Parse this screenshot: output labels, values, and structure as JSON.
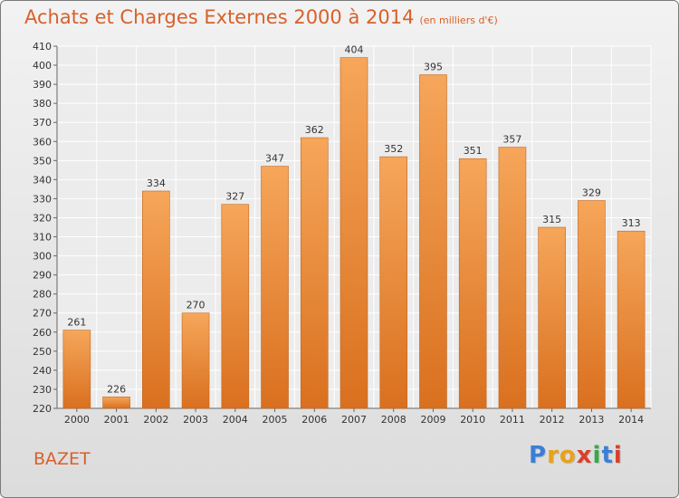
{
  "page": {
    "title": "Achats et Charges Externes 2000 à 2014",
    "unit": "(en milliers d'€)",
    "place": "BAZET",
    "logo": "Proxiti"
  },
  "colors": {
    "bar_top": "#f6a65a",
    "bar_bottom": "#d9701f",
    "bar_edge": "#c4661d",
    "title": "#d8602a",
    "logo": [
      "#3a7fd5",
      "#e8a21b",
      "#e8a21b",
      "#d8402a",
      "#3aa84a",
      "#3a7fd5",
      "#d8402a"
    ]
  },
  "chart_data": {
    "type": "bar",
    "title": "Achats et Charges Externes 2000 à 2014",
    "categories": [
      "2000",
      "2001",
      "2002",
      "2003",
      "2004",
      "2005",
      "2006",
      "2007",
      "2008",
      "2009",
      "2010",
      "2011",
      "2012",
      "2013",
      "2014"
    ],
    "values": [
      261,
      226,
      334,
      270,
      327,
      347,
      362,
      404,
      352,
      395,
      351,
      357,
      315,
      329,
      313
    ],
    "ylim": [
      220,
      410
    ],
    "yticks": [
      220,
      230,
      240,
      250,
      260,
      270,
      280,
      290,
      300,
      310,
      320,
      330,
      340,
      350,
      360,
      370,
      380,
      390,
      400,
      410
    ],
    "grid": true,
    "xlabel": "",
    "ylabel": ""
  }
}
